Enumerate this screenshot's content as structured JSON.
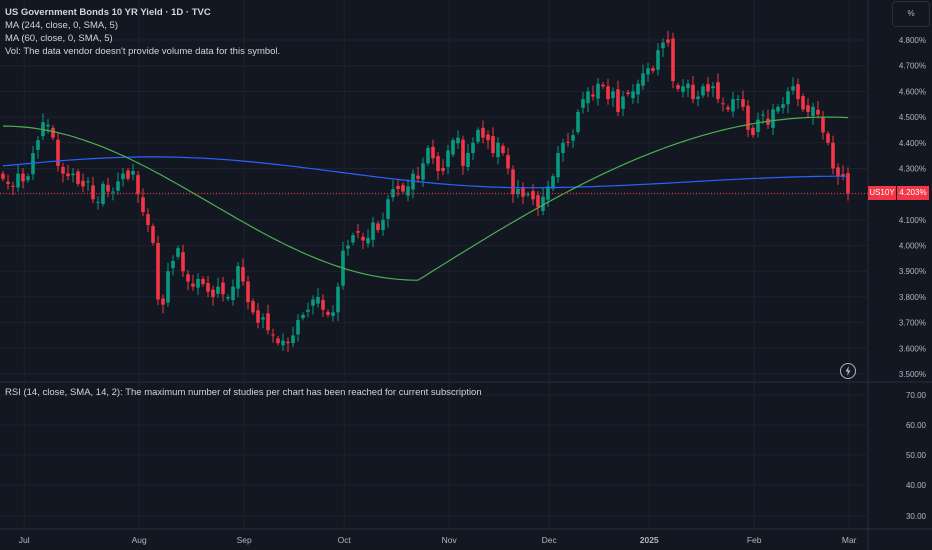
{
  "header": {
    "title": "US Government Bonds 10 YR Yield · 1D · TVC",
    "ma1": "MA (244, close, 0, SMA, 5)",
    "ma2": "MA (60, close, 0, SMA, 5)",
    "vol": "Vol: The data vendor doesn't provide volume data for this symbol."
  },
  "unit_button": "%",
  "rsi_label": "RSI (14, close, SMA, 14, 2): The maximum number of studies per chart has been reached for current subscription",
  "price_tag": {
    "symbol": "US10Y",
    "value": "4.203%"
  },
  "colors": {
    "bg": "#131722",
    "up": "#089981",
    "down": "#f23645",
    "ma244": "#2962ff",
    "ma60": "#4caf50",
    "grid": "#1e222d"
  },
  "chart_data": {
    "type": "candlestick",
    "title": "US Government Bonds 10 YR Yield · 1D · TVC",
    "y_ticks": [
      "4.800%",
      "4.700%",
      "4.600%",
      "4.500%",
      "4.400%",
      "4.300%",
      "4.200%",
      "4.100%",
      "4.000%",
      "3.900%",
      "3.800%",
      "3.700%",
      "3.600%",
      "3.500%"
    ],
    "y_tick_values": [
      4.8,
      4.7,
      4.6,
      4.5,
      4.4,
      4.3,
      4.2,
      4.1,
      4.0,
      3.9,
      3.8,
      3.7,
      3.6,
      3.5
    ],
    "ylim": [
      3.48,
      4.88
    ],
    "x_ticks": [
      "Jul",
      "Aug",
      "Sep",
      "Oct",
      "Nov",
      "Dec",
      "2025",
      "Feb",
      "Mar"
    ],
    "x_tick_index": [
      4,
      27,
      48,
      68,
      89,
      109,
      129,
      150,
      169
    ],
    "rsi_ticks": [
      "70.00",
      "60.00",
      "50.00",
      "40.00",
      "30.00"
    ],
    "last_value": 4.203,
    "closes": [
      4.26,
      4.24,
      4.23,
      4.28,
      4.25,
      4.27,
      4.36,
      4.41,
      4.48,
      4.47,
      4.42,
      4.31,
      4.28,
      4.27,
      4.28,
      4.24,
      4.23,
      4.25,
      4.18,
      4.17,
      4.24,
      4.21,
      4.21,
      4.25,
      4.28,
      4.26,
      4.29,
      4.2,
      4.13,
      4.08,
      4.01,
      3.79,
      3.77,
      3.9,
      3.94,
      3.99,
      3.9,
      3.86,
      3.84,
      3.87,
      3.85,
      3.82,
      3.8,
      3.84,
      3.81,
      3.8,
      3.84,
      3.92,
      3.86,
      3.78,
      3.74,
      3.7,
      3.72,
      3.67,
      3.65,
      3.62,
      3.63,
      3.62,
      3.65,
      3.71,
      3.73,
      3.75,
      3.79,
      3.8,
      3.75,
      3.73,
      3.74,
      3.84,
      3.98,
      4.0,
      4.04,
      4.05,
      4.02,
      4.03,
      4.09,
      4.06,
      4.1,
      4.18,
      4.22,
      4.22,
      4.21,
      4.23,
      4.28,
      4.26,
      4.32,
      4.38,
      4.34,
      4.29,
      4.29,
      4.37,
      4.41,
      4.42,
      4.31,
      4.36,
      4.4,
      4.45,
      4.42,
      4.41,
      4.36,
      4.4,
      4.36,
      4.3,
      4.2,
      4.22,
      4.19,
      4.2,
      4.18,
      4.15,
      4.19,
      4.23,
      4.27,
      4.36,
      4.4,
      4.4,
      4.43,
      4.52,
      4.57,
      4.6,
      4.58,
      4.63,
      4.62,
      4.57,
      4.6,
      4.52,
      4.58,
      4.59,
      4.6,
      4.63,
      4.67,
      4.69,
      4.68,
      4.76,
      4.79,
      4.79,
      4.64,
      4.61,
      4.62,
      4.63,
      4.57,
      4.58,
      4.62,
      4.6,
      4.62,
      4.57,
      4.55,
      4.53,
      4.57,
      4.57,
      4.54,
      4.45,
      4.43,
      4.49,
      4.51,
      4.47,
      4.53,
      4.54,
      4.55,
      4.6,
      4.62,
      4.57,
      4.53,
      4.52,
      4.54,
      4.51,
      4.44,
      4.4,
      4.3,
      4.27,
      4.27,
      4.203
    ],
    "series": [
      {
        "name": "MA (244, close, 0, SMA, 5)",
        "color": "#2962ff",
        "start": 4.31,
        "min": 4.225,
        "min_index": 105,
        "end": 4.27,
        "max": 4.345,
        "max_index": 30
      },
      {
        "name": "MA (60, close, 0, SMA, 5)",
        "color": "#4caf50",
        "start": 4.465,
        "min": 3.865,
        "min_index": 83,
        "end": 4.5
      }
    ]
  }
}
